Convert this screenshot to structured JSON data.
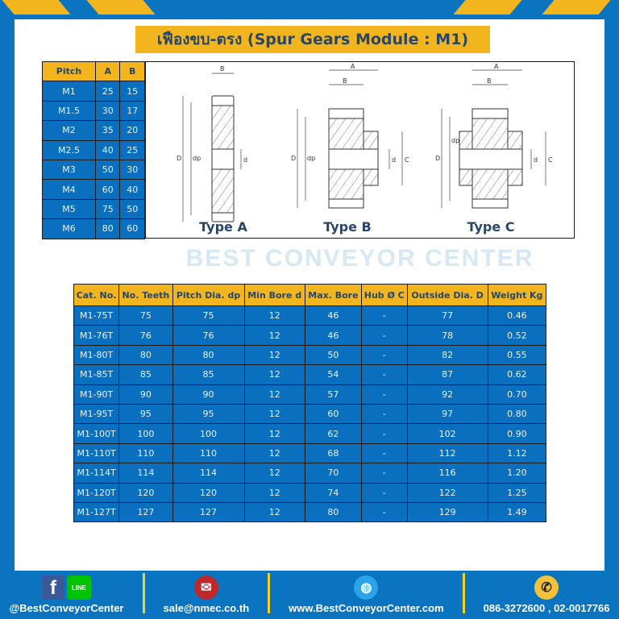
{
  "title": "เฟืองขบ-ตรง (Spur Gears Module : M1)",
  "colors": {
    "background": "#0b74c0",
    "accent": "#f2b51d",
    "cell": "#0b6fc0",
    "title_text": "#28466a"
  },
  "pitch_table": {
    "headers": [
      "Pitch",
      "A",
      "B"
    ],
    "rows": [
      [
        "M1",
        "25",
        "15"
      ],
      [
        "M1.5",
        "30",
        "17"
      ],
      [
        "M2",
        "35",
        "20"
      ],
      [
        "M2.5",
        "40",
        "25"
      ],
      [
        "M3",
        "50",
        "30"
      ],
      [
        "M4",
        "60",
        "40"
      ],
      [
        "M5",
        "75",
        "50"
      ],
      [
        "M6",
        "80",
        "60"
      ]
    ]
  },
  "diagram": {
    "types": [
      "Type A",
      "Type B",
      "Type C"
    ],
    "labels": {
      "A": "A",
      "B": "B",
      "C": "C",
      "D": "D",
      "dp": "dp",
      "d": "d"
    },
    "watermark": "BEST CONVEYOR CENTER"
  },
  "main_table": {
    "headers": [
      "Cat. No.",
      "No. Teeth",
      "Pitch Dia. dp",
      "Min Bore d",
      "Max. Bore",
      "Hub Ø C",
      "Outside Dia. D",
      "Weight Kg"
    ],
    "rows": [
      [
        "M1-75T",
        "75",
        "75",
        "12",
        "46",
        "-",
        "77",
        "0.46"
      ],
      [
        "M1-76T",
        "76",
        "76",
        "12",
        "46",
        "-",
        "78",
        "0.52"
      ],
      [
        "M1-80T",
        "80",
        "80",
        "12",
        "50",
        "-",
        "82",
        "0.55"
      ],
      [
        "M1-85T",
        "85",
        "85",
        "12",
        "54",
        "-",
        "87",
        "0.62"
      ],
      [
        "M1-90T",
        "90",
        "90",
        "12",
        "57",
        "-",
        "92",
        "0.70"
      ],
      [
        "M1-95T",
        "95",
        "95",
        "12",
        "60",
        "-",
        "97",
        "0.80"
      ],
      [
        "M1-100T",
        "100",
        "100",
        "12",
        "62",
        "-",
        "102",
        "0.90"
      ],
      [
        "M1-110T",
        "110",
        "110",
        "12",
        "68",
        "-",
        "112",
        "1.12"
      ],
      [
        "M1-114T",
        "114",
        "114",
        "12",
        "70",
        "-",
        "116",
        "1.20"
      ],
      [
        "M1-120T",
        "120",
        "120",
        "12",
        "74",
        "-",
        "122",
        "1.25"
      ],
      [
        "M1-127T",
        "127",
        "127",
        "12",
        "80",
        "-",
        "129",
        "1.49"
      ]
    ]
  },
  "footer": {
    "social": "@BestConveyorCenter",
    "line_label": "LINE",
    "email": "sale@nmec.co.th",
    "website": "www.BestConveyorCenter.com",
    "phone": "086-3272600 , 02-0017766",
    "icons": [
      "facebook-icon",
      "line-icon",
      "mail-icon",
      "globe-icon",
      "phone-icon"
    ]
  }
}
